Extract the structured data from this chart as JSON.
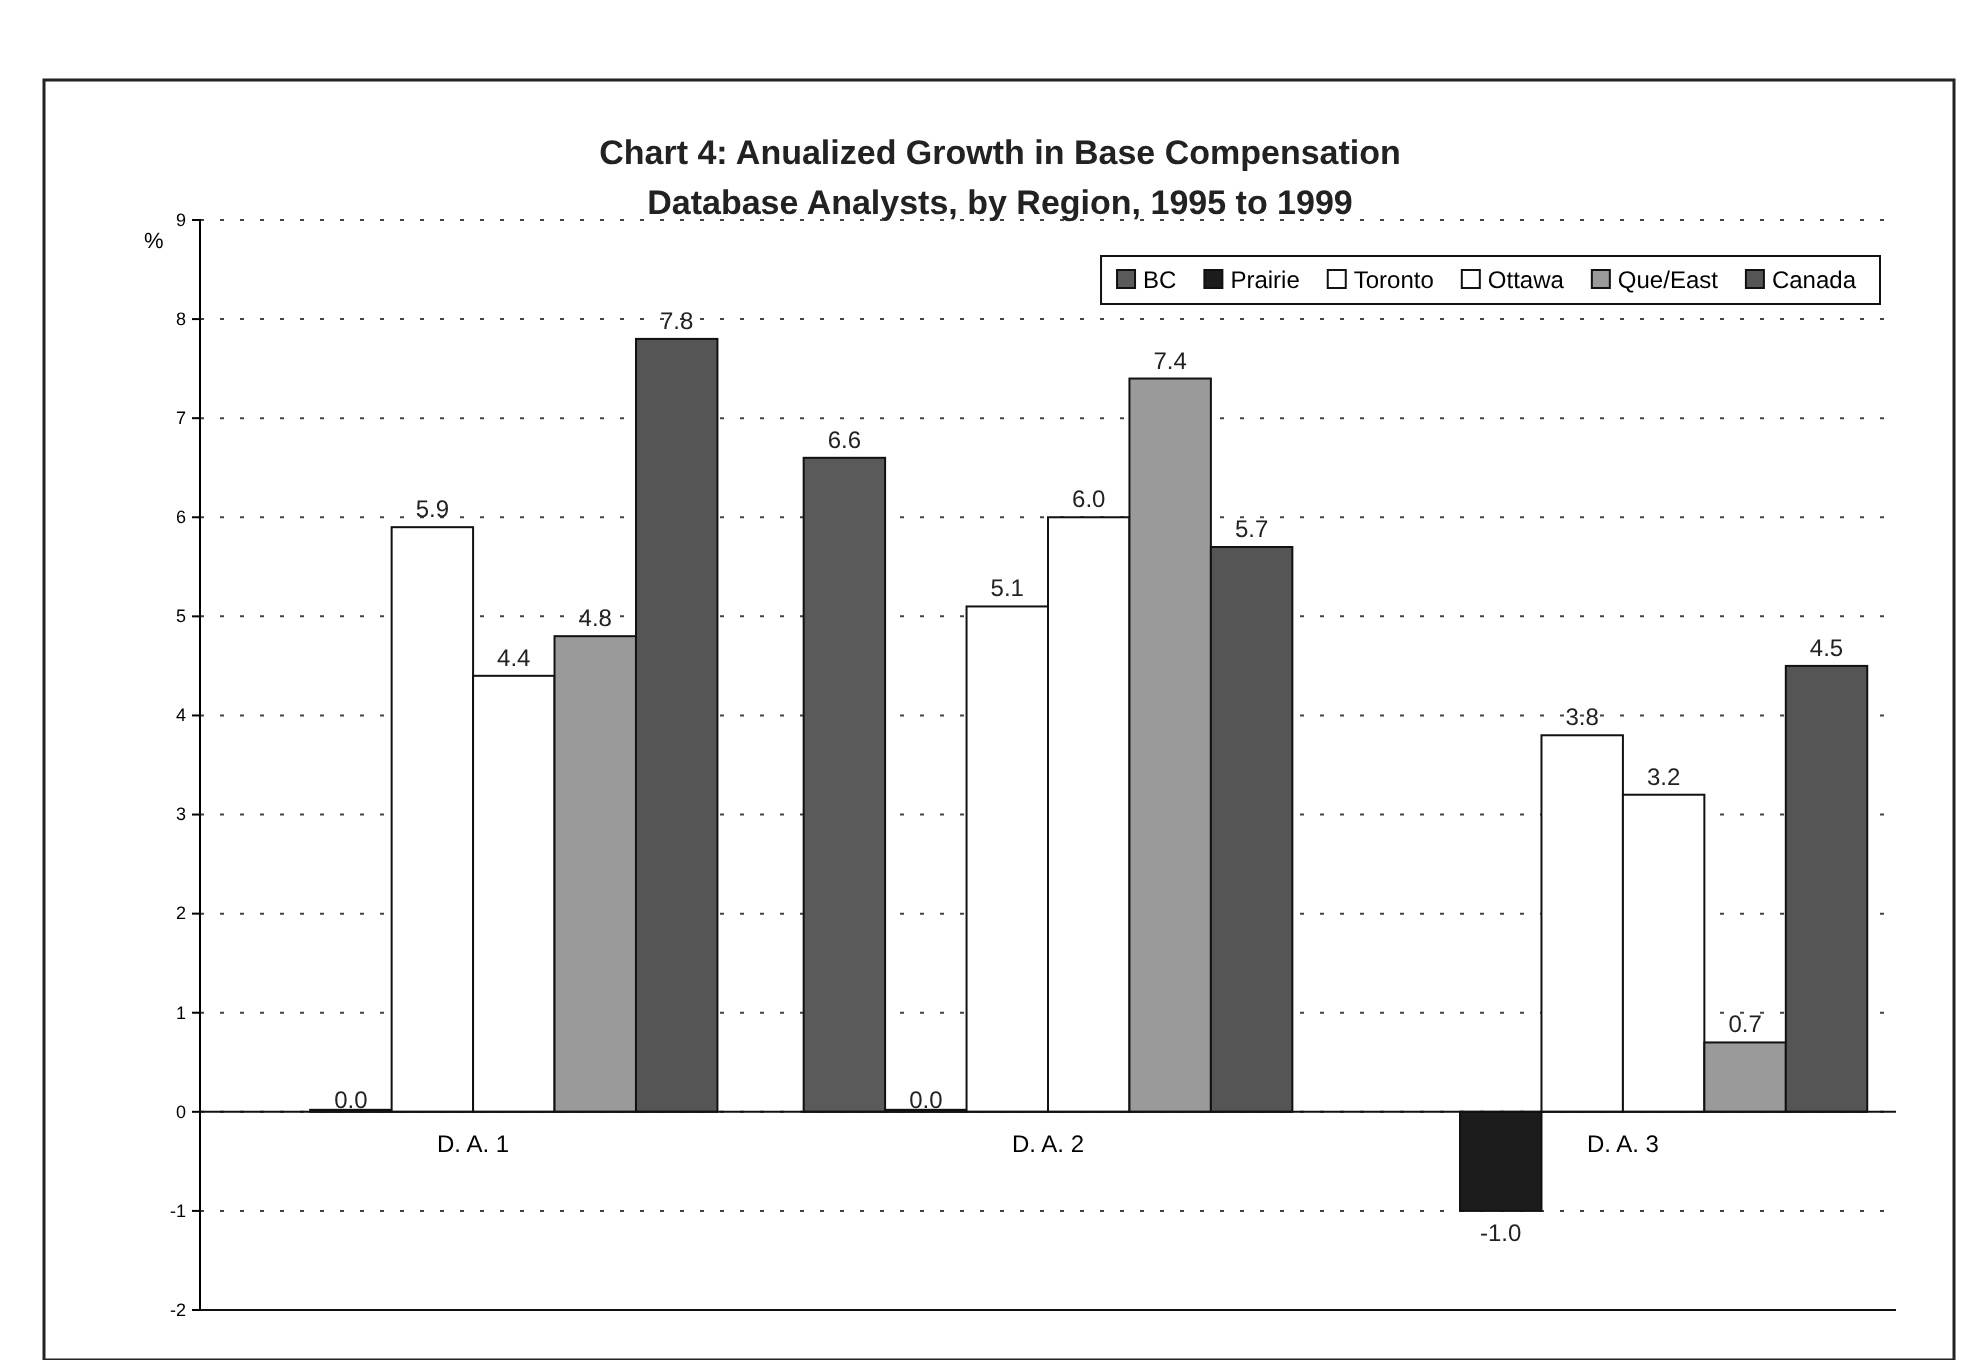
{
  "chart_data": {
    "type": "bar",
    "title": "Chart 4:  Anualized Growth in Base Compensation\nDatabase Analysts, by Region, 1995 to 1999",
    "ylabel": "%",
    "categories": [
      "D. A. 1",
      "D. A. 2",
      "D. A. 3"
    ],
    "series": [
      {
        "name": "BC",
        "color": "#5a5a5a",
        "values": [
          null,
          6.6,
          null
        ],
        "value_labels": [
          null,
          "6.6",
          null
        ]
      },
      {
        "name": "Prairie",
        "color": "#1c1c1c",
        "values": [
          0.0,
          0.0,
          -1.0
        ],
        "value_labels": [
          "0.0",
          "0.0",
          "-1.0"
        ]
      },
      {
        "name": "Toronto",
        "color": "#ffffff",
        "values": [
          5.9,
          5.1,
          3.8
        ],
        "value_labels": [
          "5.9",
          "5.1",
          "3.8"
        ]
      },
      {
        "name": "Ottawa",
        "color": "#ffffff",
        "values": [
          4.4,
          6.0,
          3.2
        ],
        "value_labels": [
          "4.4",
          "6.0",
          "3.2"
        ]
      },
      {
        "name": "Que/East",
        "color": "#9a9a9a",
        "values": [
          4.8,
          7.4,
          0.7
        ],
        "value_labels": [
          "4.8",
          "7.4",
          "0.7"
        ]
      },
      {
        "name": "Canada",
        "color": "#555555",
        "values": [
          7.8,
          5.7,
          4.5
        ],
        "value_labels": [
          "7.8",
          "5.7",
          "4.5"
        ]
      }
    ],
    "ylim": [
      -2,
      9
    ],
    "yticks": [
      -2,
      -1,
      0,
      1,
      2,
      3,
      4,
      5,
      6,
      7,
      8,
      9
    ],
    "grid": "y",
    "legend": "top right"
  }
}
